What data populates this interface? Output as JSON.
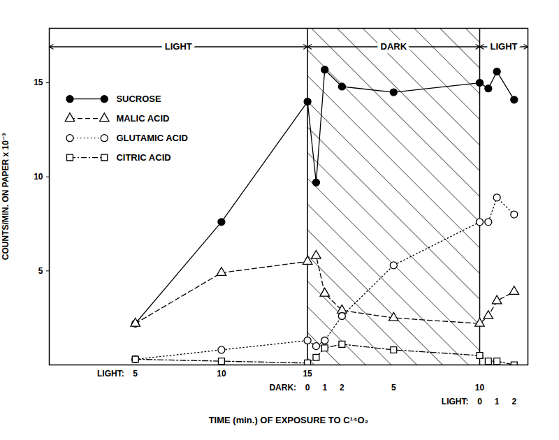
{
  "chart_data": {
    "type": "line",
    "xlabel": "TIME (min.) OF EXPOSURE TO C¹⁴O₂",
    "ylabel": "COUNTS/MIN. ON PAPER x 10⁻³",
    "x": [
      5,
      10,
      15,
      15.5,
      16,
      17,
      20,
      25,
      25.5,
      26,
      27
    ],
    "series": [
      {
        "name": "SUCROSE",
        "color": "#000000",
        "marker": "circle-filled",
        "line_style": "solid",
        "values": [
          2.2,
          7.6,
          14.0,
          9.7,
          15.7,
          14.8,
          14.5,
          15.0,
          14.7,
          15.6,
          14.1
        ]
      },
      {
        "name": "MALIC ACID",
        "color": "#000000",
        "marker": "triangle-open",
        "line_style": "dashed",
        "values": [
          2.2,
          4.9,
          5.5,
          5.8,
          3.8,
          2.9,
          2.5,
          2.2,
          2.6,
          3.4,
          3.9
        ]
      },
      {
        "name": "GLUTAMIC ACID",
        "color": "#000000",
        "marker": "circle-open",
        "line_style": "dotted",
        "values": [
          0.3,
          0.8,
          1.3,
          1.0,
          1.3,
          2.6,
          5.3,
          7.6,
          7.6,
          8.9,
          8.0
        ]
      },
      {
        "name": "CITRIC ACID",
        "color": "#000000",
        "marker": "square-open",
        "line_style": "dashdot",
        "values": [
          0.3,
          0.2,
          0.1,
          0.4,
          0.9,
          1.1,
          0.8,
          0.5,
          0.2,
          0.2,
          0.0
        ]
      }
    ],
    "xlim": [
      0,
      27.8
    ],
    "xticks": [
      {
        "label": "LIGHT:",
        "ticks": [
          5,
          10,
          15
        ]
      },
      {
        "label": "DARK:",
        "ticks": [
          {
            "value": 15,
            "label": "0"
          },
          {
            "value": 16,
            "label": "1"
          },
          {
            "value": 17,
            "label": "2"
          },
          {
            "value": 20,
            "label": "5"
          },
          {
            "value": 25,
            "label": "10"
          }
        ]
      },
      {
        "label": "LIGHT:",
        "ticks": [
          {
            "value": 25,
            "label": "0"
          },
          {
            "value": 26,
            "label": "1"
          },
          {
            "value": 27,
            "label": "2"
          }
        ]
      }
    ],
    "ylim": [
      0,
      17.9
    ],
    "yticks": [
      5,
      10,
      15
    ],
    "periods": [
      {
        "label": "LIGHT",
        "start": 0,
        "end": 15
      },
      {
        "label": "DARK",
        "start": 15,
        "end": 25
      },
      {
        "label": "LIGHT",
        "start": 25,
        "end": 27.8
      }
    ],
    "legend": "top-left",
    "grid": false
  }
}
